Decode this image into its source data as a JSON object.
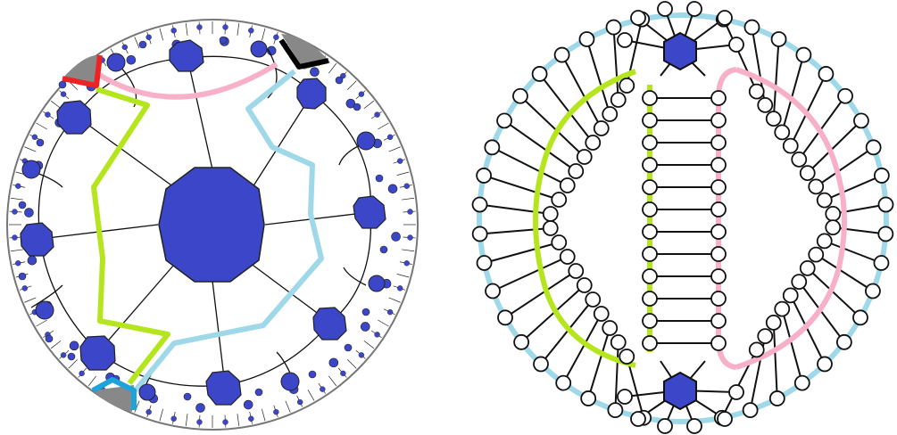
{
  "figure": {
    "left_panel": {
      "name": "hyperbolic-tiling",
      "central_tile": "octagon",
      "boundary_paths": [
        {
          "name": "green-path",
          "color": "#b5e61d"
        },
        {
          "name": "pink-path",
          "color": "#f7b0c8"
        },
        {
          "name": "lightblue-path",
          "color": "#9fd8e8"
        }
      ],
      "corner_markers": [
        {
          "name": "red-marker",
          "color": "#ee2222"
        },
        {
          "name": "black-marker",
          "color": "#000000"
        },
        {
          "name": "blue-marker",
          "color": "#1ca3dc"
        }
      ]
    },
    "right_panel": {
      "name": "graph-circle",
      "hubs": [
        "top-hub",
        "bottom-hub"
      ],
      "rungs_green_column": 12,
      "rungs_pink_side": 12,
      "outer_nodes_left": 20,
      "colors": {
        "outer": "#9fd8e8",
        "green": "#b5e61d",
        "pink": "#f7b0c8",
        "hub": "#3c46c8"
      }
    }
  }
}
